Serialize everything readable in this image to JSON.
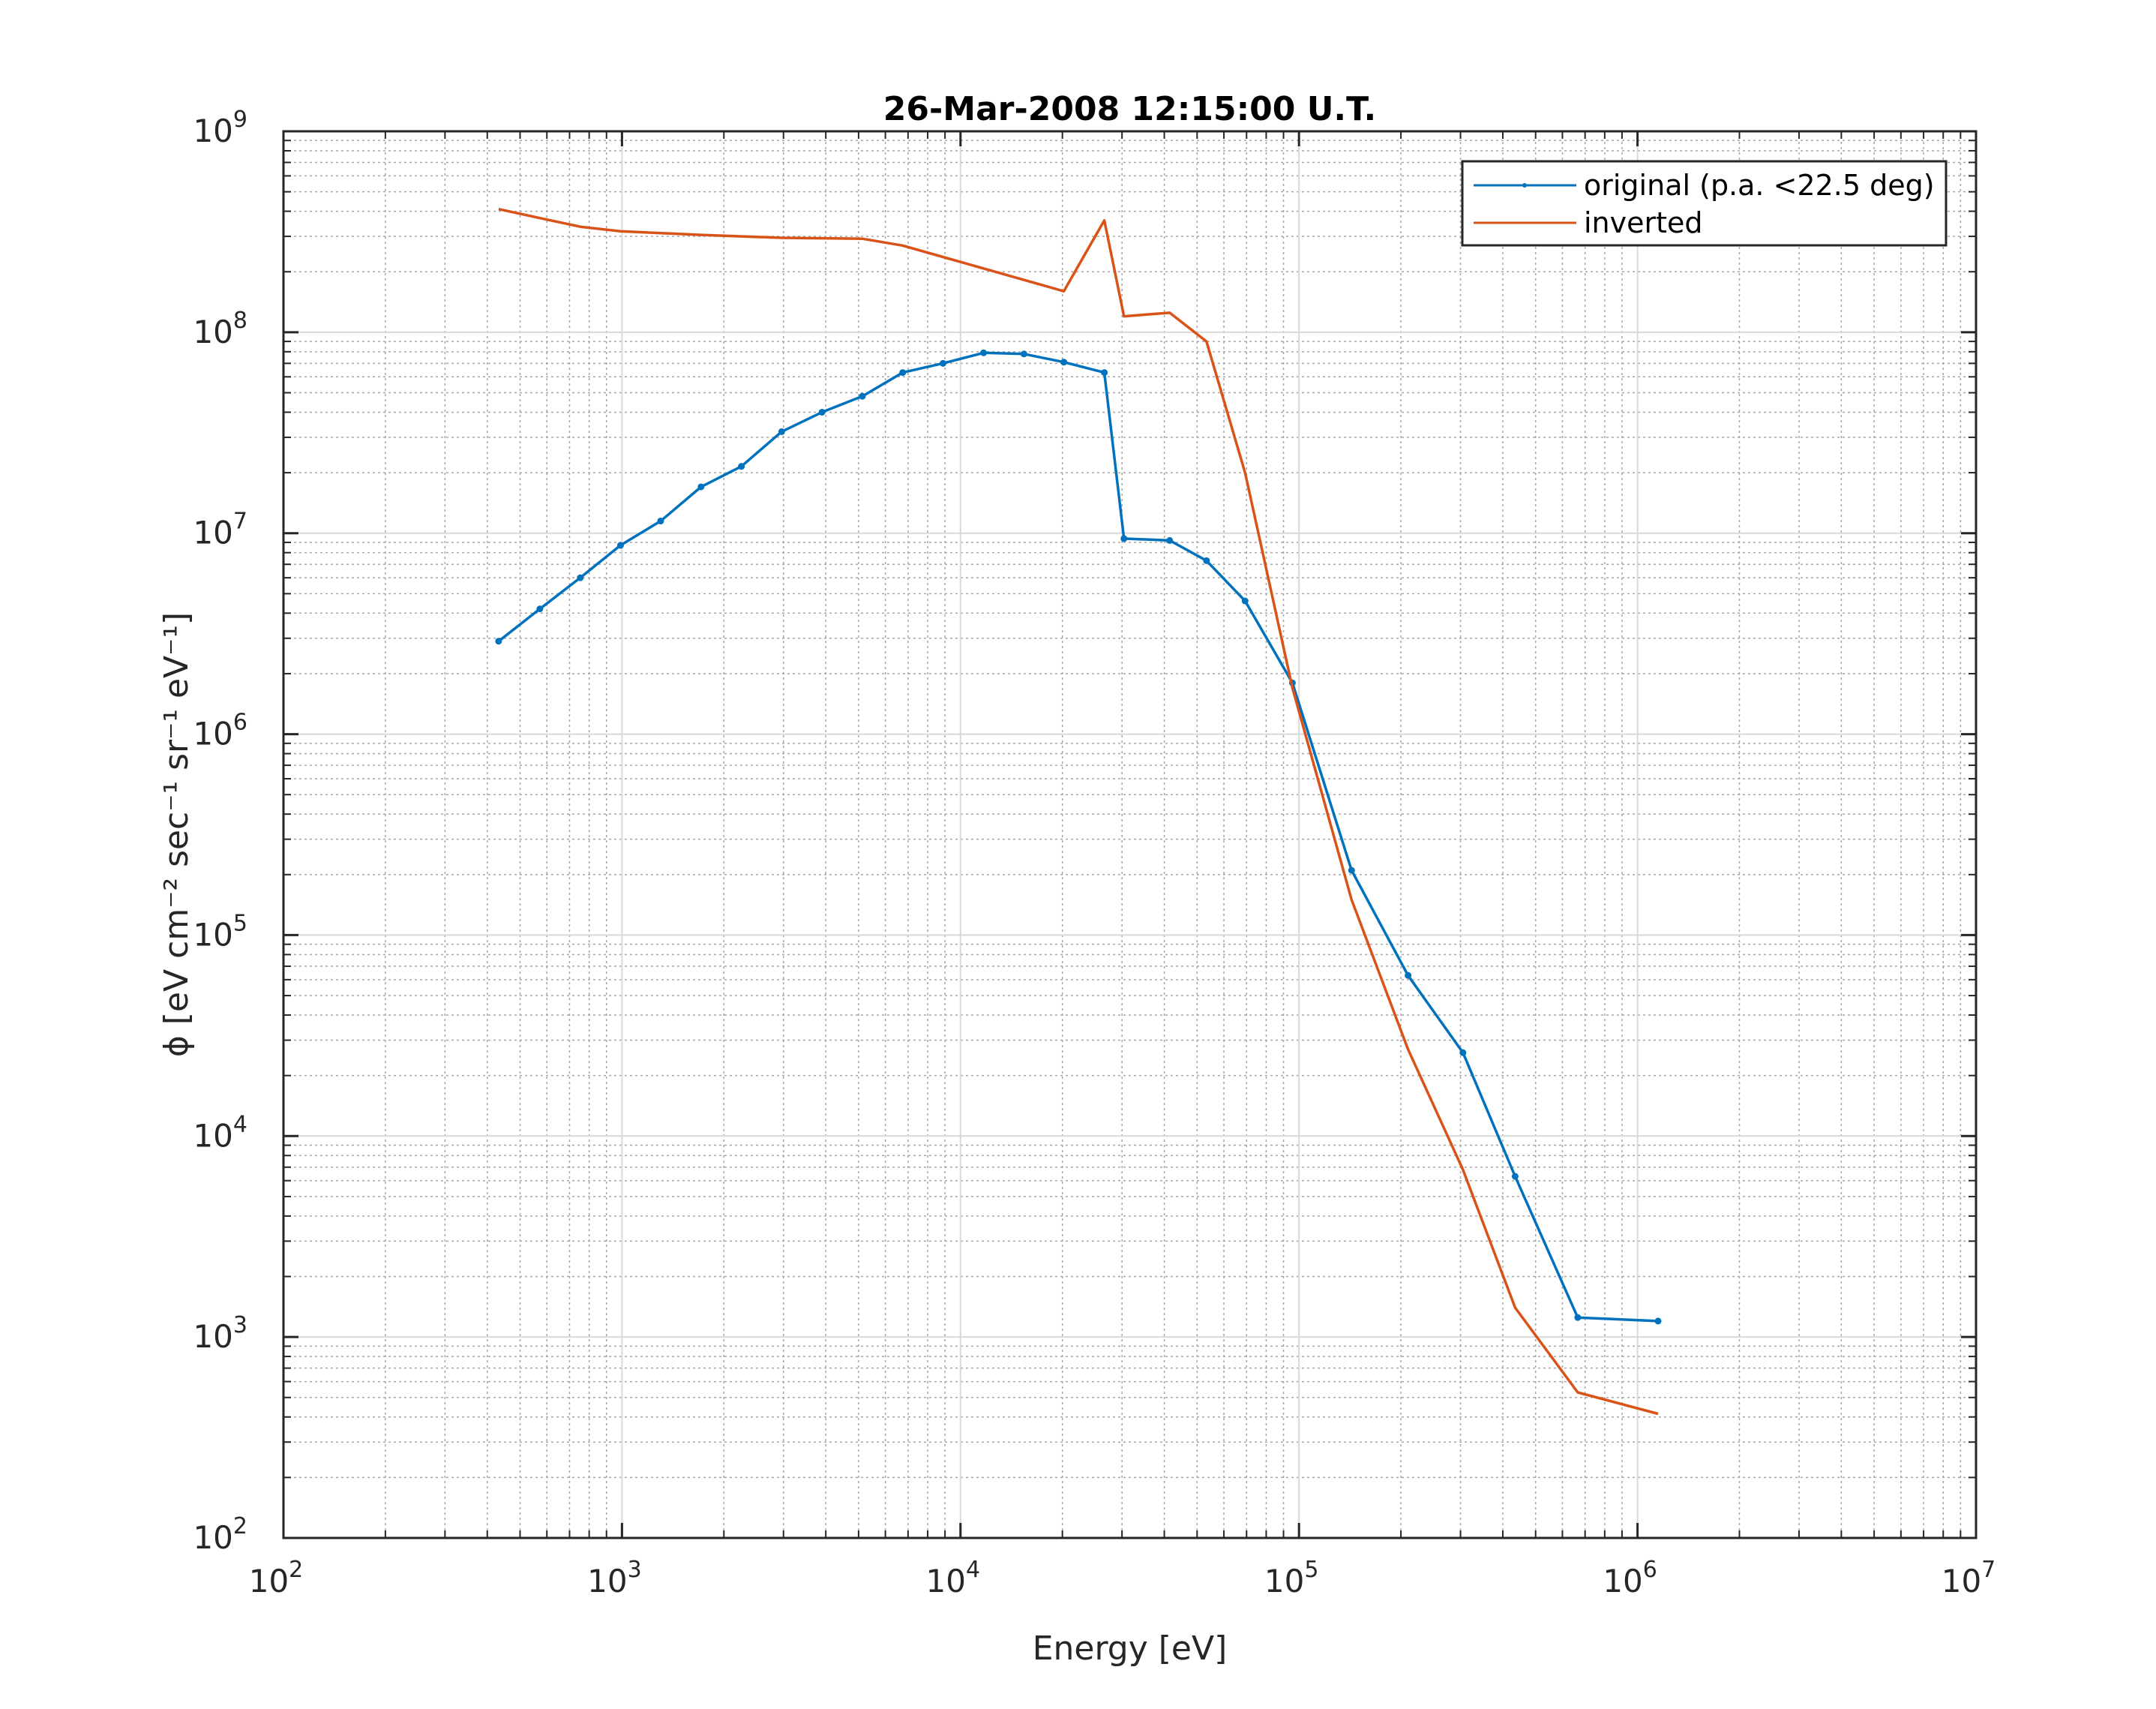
{
  "chart_data": {
    "type": "line",
    "title": "26-Mar-2008 12:15:00 U.T.",
    "xlabel": "Energy [eV]",
    "ylabel": "ϕ [eV cm⁻² sec⁻¹ sr⁻¹ eV⁻¹]",
    "xscale": "log",
    "yscale": "log",
    "xlim": [
      100,
      10000000
    ],
    "ylim": [
      100,
      1000000000
    ],
    "x_ticks": [
      {
        "base": "10",
        "exp": "2"
      },
      {
        "base": "10",
        "exp": "3"
      },
      {
        "base": "10",
        "exp": "4"
      },
      {
        "base": "10",
        "exp": "5"
      },
      {
        "base": "10",
        "exp": "6"
      },
      {
        "base": "10",
        "exp": "7"
      }
    ],
    "y_ticks": [
      {
        "base": "10",
        "exp": "2"
      },
      {
        "base": "10",
        "exp": "3"
      },
      {
        "base": "10",
        "exp": "4"
      },
      {
        "base": "10",
        "exp": "5"
      },
      {
        "base": "10",
        "exp": "6"
      },
      {
        "base": "10",
        "exp": "7"
      },
      {
        "base": "10",
        "exp": "8"
      },
      {
        "base": "10",
        "exp": "9"
      }
    ],
    "grid": true,
    "minor_grid": true,
    "legend_position": "top-right",
    "series": [
      {
        "name": "original (p.a. <22.5 deg)",
        "color": "#0072BD",
        "markers": true,
        "points": [
          [
            432,
            2900000
          ],
          [
            572,
            4200000
          ],
          [
            753,
            6000000
          ],
          [
            990,
            8700000
          ],
          [
            1301,
            11500000
          ],
          [
            1712,
            17000000
          ],
          [
            2253,
            21500000
          ],
          [
            2963,
            32000000
          ],
          [
            3899,
            40000000
          ],
          [
            5129,
            48000000
          ],
          [
            6750,
            63000000
          ],
          [
            8880,
            70000000
          ],
          [
            11700,
            79000000
          ],
          [
            15400,
            78000000
          ],
          [
            20200,
            71000000
          ],
          [
            26600,
            63000000
          ],
          [
            30400,
            9400000
          ],
          [
            41500,
            9200000
          ],
          [
            53300,
            7300000
          ],
          [
            69300,
            4600000
          ],
          [
            95600,
            1800000
          ],
          [
            143000,
            210000
          ],
          [
            210000,
            63000
          ],
          [
            305000,
            26000
          ],
          [
            435000,
            6300
          ],
          [
            666000,
            1250
          ],
          [
            1150000,
            1200
          ]
        ]
      },
      {
        "name": "inverted",
        "color": "#D95319",
        "markers": false,
        "points": [
          [
            432,
            410000000
          ],
          [
            572,
            370000000
          ],
          [
            753,
            335000000
          ],
          [
            990,
            318000000
          ],
          [
            1712,
            305000000
          ],
          [
            2963,
            295000000
          ],
          [
            5129,
            292000000
          ],
          [
            6750,
            270000000
          ],
          [
            20200,
            160000000
          ],
          [
            26600,
            360000000
          ],
          [
            30400,
            120000000
          ],
          [
            41500,
            125000000
          ],
          [
            53300,
            90000000
          ],
          [
            69300,
            20000000
          ],
          [
            95600,
            1700000
          ],
          [
            143000,
            150000
          ],
          [
            210000,
            27000
          ],
          [
            305000,
            6800
          ],
          [
            435000,
            1400
          ],
          [
            666000,
            530
          ],
          [
            1150000,
            415
          ]
        ]
      }
    ]
  }
}
